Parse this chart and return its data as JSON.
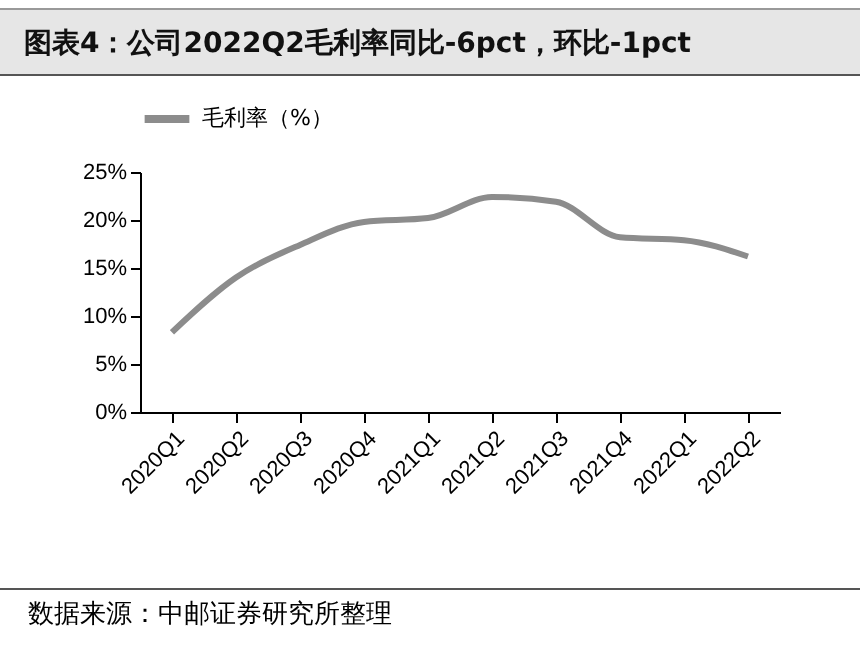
{
  "chart_data": {
    "type": "line",
    "title": "图表4：公司2022Q2毛利率同比-6pct，环比-1pct",
    "categories": [
      "2020Q1",
      "2020Q2",
      "2020Q3",
      "2020Q4",
      "2021Q1",
      "2021Q2",
      "2021Q3",
      "2021Q4",
      "2022Q1",
      "2022Q2"
    ],
    "series": [
      {
        "name": "毛利率（%）",
        "color": "#8c8c8c",
        "values": [
          8.3,
          14.0,
          17.4,
          19.8,
          20.2,
          22.4,
          21.9,
          18.2,
          17.9,
          16.2
        ]
      }
    ],
    "ylim": [
      0,
      25
    ],
    "yticks": [
      {
        "value": 0,
        "label": "0%"
      },
      {
        "value": 5,
        "label": "5%"
      },
      {
        "value": 10,
        "label": "10%"
      },
      {
        "value": 15,
        "label": "15%"
      },
      {
        "value": 20,
        "label": "20%"
      },
      {
        "value": 25,
        "label": "25%"
      }
    ],
    "legend": "top",
    "grid": false,
    "marker": "none",
    "line_style": "solid",
    "annotations": [
      "数据来源：中邮证券研究所整理"
    ]
  }
}
